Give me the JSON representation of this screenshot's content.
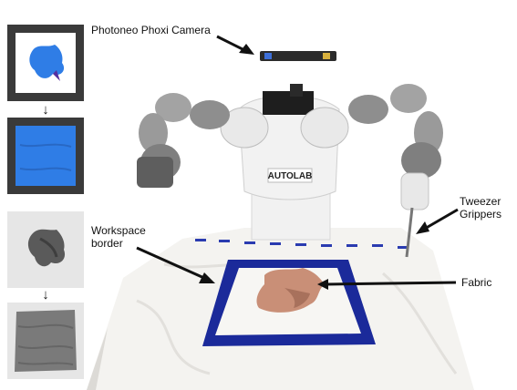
{
  "labels": {
    "camera": "Photoneo Phoxi Camera",
    "workspace_line1": "Workspace",
    "workspace_line2": "border",
    "tweezer_line1": "Tweezer",
    "tweezer_line2": "Grippers",
    "fabric": "Fabric",
    "logo": "AUTOLAB"
  },
  "colors": {
    "sim_fabric": "#2f7de6",
    "sim_frame": "#3a3a3a",
    "depth_fabric": "#5a5a5a",
    "depth_frame": "#e6e6e6",
    "real_fabric": "#c98f77",
    "tape": "#1b2a9a",
    "robot_grey": "#9a9a9a",
    "robot_white": "#f2f2f2"
  },
  "icons": [
    "down-arrow-icon",
    "down-arrow-icon"
  ]
}
